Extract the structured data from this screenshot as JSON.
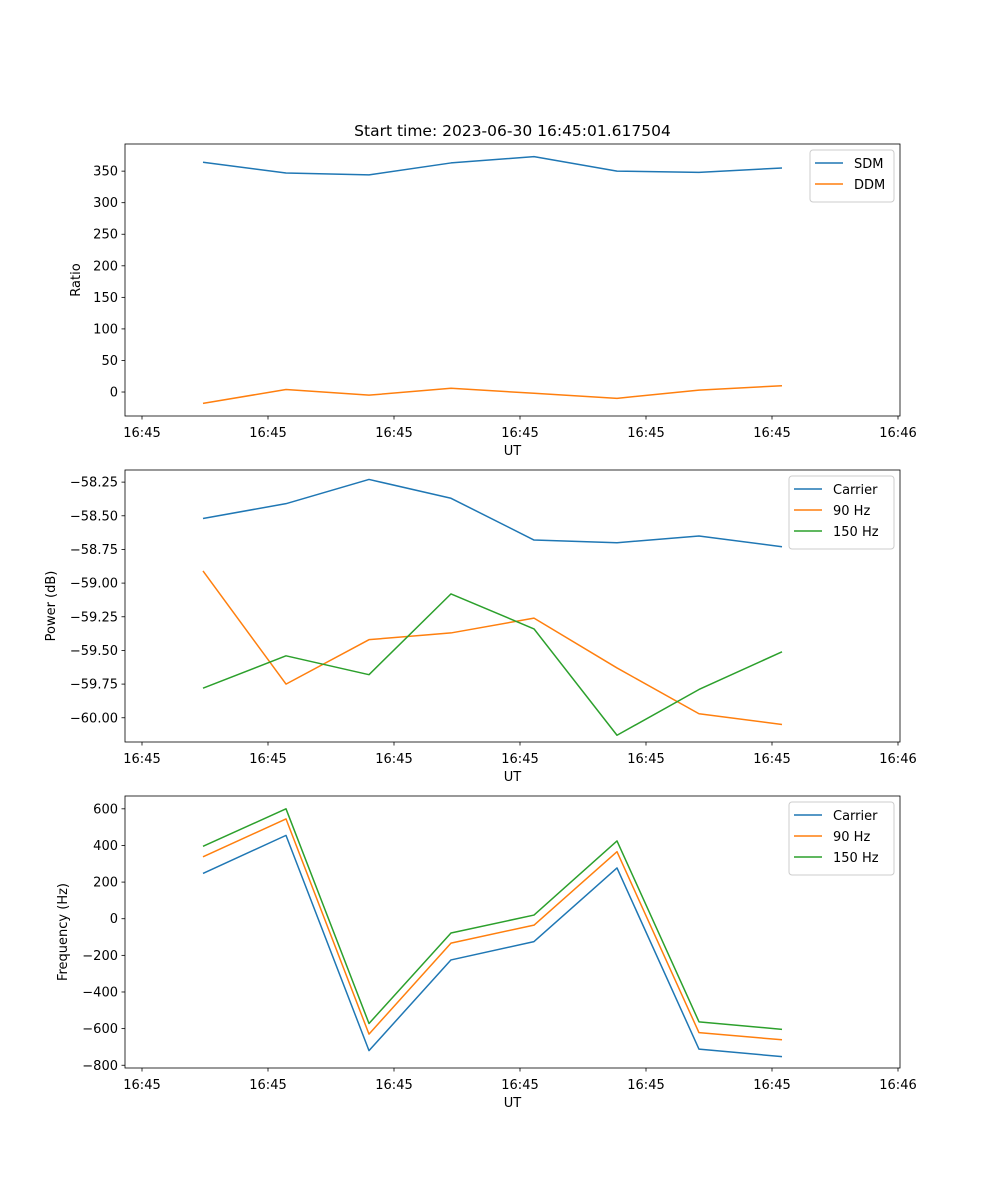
{
  "title": "Start time: 2023-06-30 16:45:01.617504",
  "x_tick_labels": [
    "16:45",
    "16:45",
    "16:45",
    "16:45",
    "16:45",
    "16:45",
    "16:46"
  ],
  "colors": {
    "c0": "#1f77b4",
    "c1": "#ff7f0e",
    "c2": "#2ca02c"
  },
  "chart_data": [
    {
      "type": "line",
      "xlabel": "UT",
      "ylabel": "Ratio",
      "ylim": [
        -38,
        393
      ],
      "yticks": [
        0,
        50,
        100,
        150,
        200,
        250,
        300,
        350
      ],
      "x_tick_labels": [
        "16:45",
        "16:45",
        "16:45",
        "16:45",
        "16:45",
        "16:45",
        "16:46"
      ],
      "legend_position": "top-right",
      "grid": false,
      "series": [
        {
          "name": "SDM",
          "color": "#1f77b4",
          "values": [
            364,
            347,
            344,
            363,
            373,
            350,
            348,
            355
          ]
        },
        {
          "name": "DDM",
          "color": "#ff7f0e",
          "values": [
            -18,
            4,
            -5,
            6,
            -2,
            -10,
            3,
            10
          ]
        }
      ]
    },
    {
      "type": "line",
      "xlabel": "UT",
      "ylabel": "Power (dB)",
      "ylim": [
        -60.18,
        -58.16
      ],
      "yticks": [
        -60.0,
        -59.75,
        -59.5,
        -59.25,
        -59.0,
        -58.75,
        -58.5,
        -58.25
      ],
      "ytick_labels": [
        "−60.00",
        "−59.75",
        "−59.50",
        "−59.25",
        "−59.00",
        "−58.75",
        "−58.50",
        "−58.25"
      ],
      "x_tick_labels": [
        "16:45",
        "16:45",
        "16:45",
        "16:45",
        "16:45",
        "16:45",
        "16:46"
      ],
      "legend_position": "top-right",
      "grid": false,
      "series": [
        {
          "name": "Carrier",
          "color": "#1f77b4",
          "values": [
            -58.52,
            -58.41,
            -58.23,
            -58.37,
            -58.68,
            -58.7,
            -58.65,
            -58.73
          ]
        },
        {
          "name": "90 Hz",
          "color": "#ff7f0e",
          "values": [
            -58.91,
            -59.75,
            -59.42,
            -59.37,
            -59.26,
            -59.63,
            -59.97,
            -60.05
          ]
        },
        {
          "name": "150 Hz",
          "color": "#2ca02c",
          "values": [
            -59.78,
            -59.54,
            -59.68,
            -59.08,
            -59.34,
            -60.13,
            -59.79,
            -59.51
          ]
        }
      ]
    },
    {
      "type": "line",
      "xlabel": "UT",
      "ylabel": "Frequency (Hz)",
      "ylim": [
        -815,
        670
      ],
      "yticks": [
        -800,
        -600,
        -400,
        -200,
        0,
        200,
        400,
        600
      ],
      "ytick_labels": [
        "−800",
        "−600",
        "−400",
        "−200",
        "0",
        "200",
        "400",
        "600"
      ],
      "x_tick_labels": [
        "16:45",
        "16:45",
        "16:45",
        "16:45",
        "16:45",
        "16:45",
        "16:46"
      ],
      "legend_position": "top-right",
      "grid": false,
      "series": [
        {
          "name": "Carrier",
          "color": "#1f77b4",
          "values": [
            247,
            455,
            -720,
            -225,
            -125,
            277,
            -712,
            -753
          ]
        },
        {
          "name": "90 Hz",
          "color": "#ff7f0e",
          "values": [
            338,
            545,
            -630,
            -133,
            -35,
            366,
            -622,
            -661
          ]
        },
        {
          "name": "150 Hz",
          "color": "#2ca02c",
          "values": [
            395,
            600,
            -572,
            -78,
            20,
            425,
            -563,
            -604
          ]
        }
      ]
    }
  ]
}
